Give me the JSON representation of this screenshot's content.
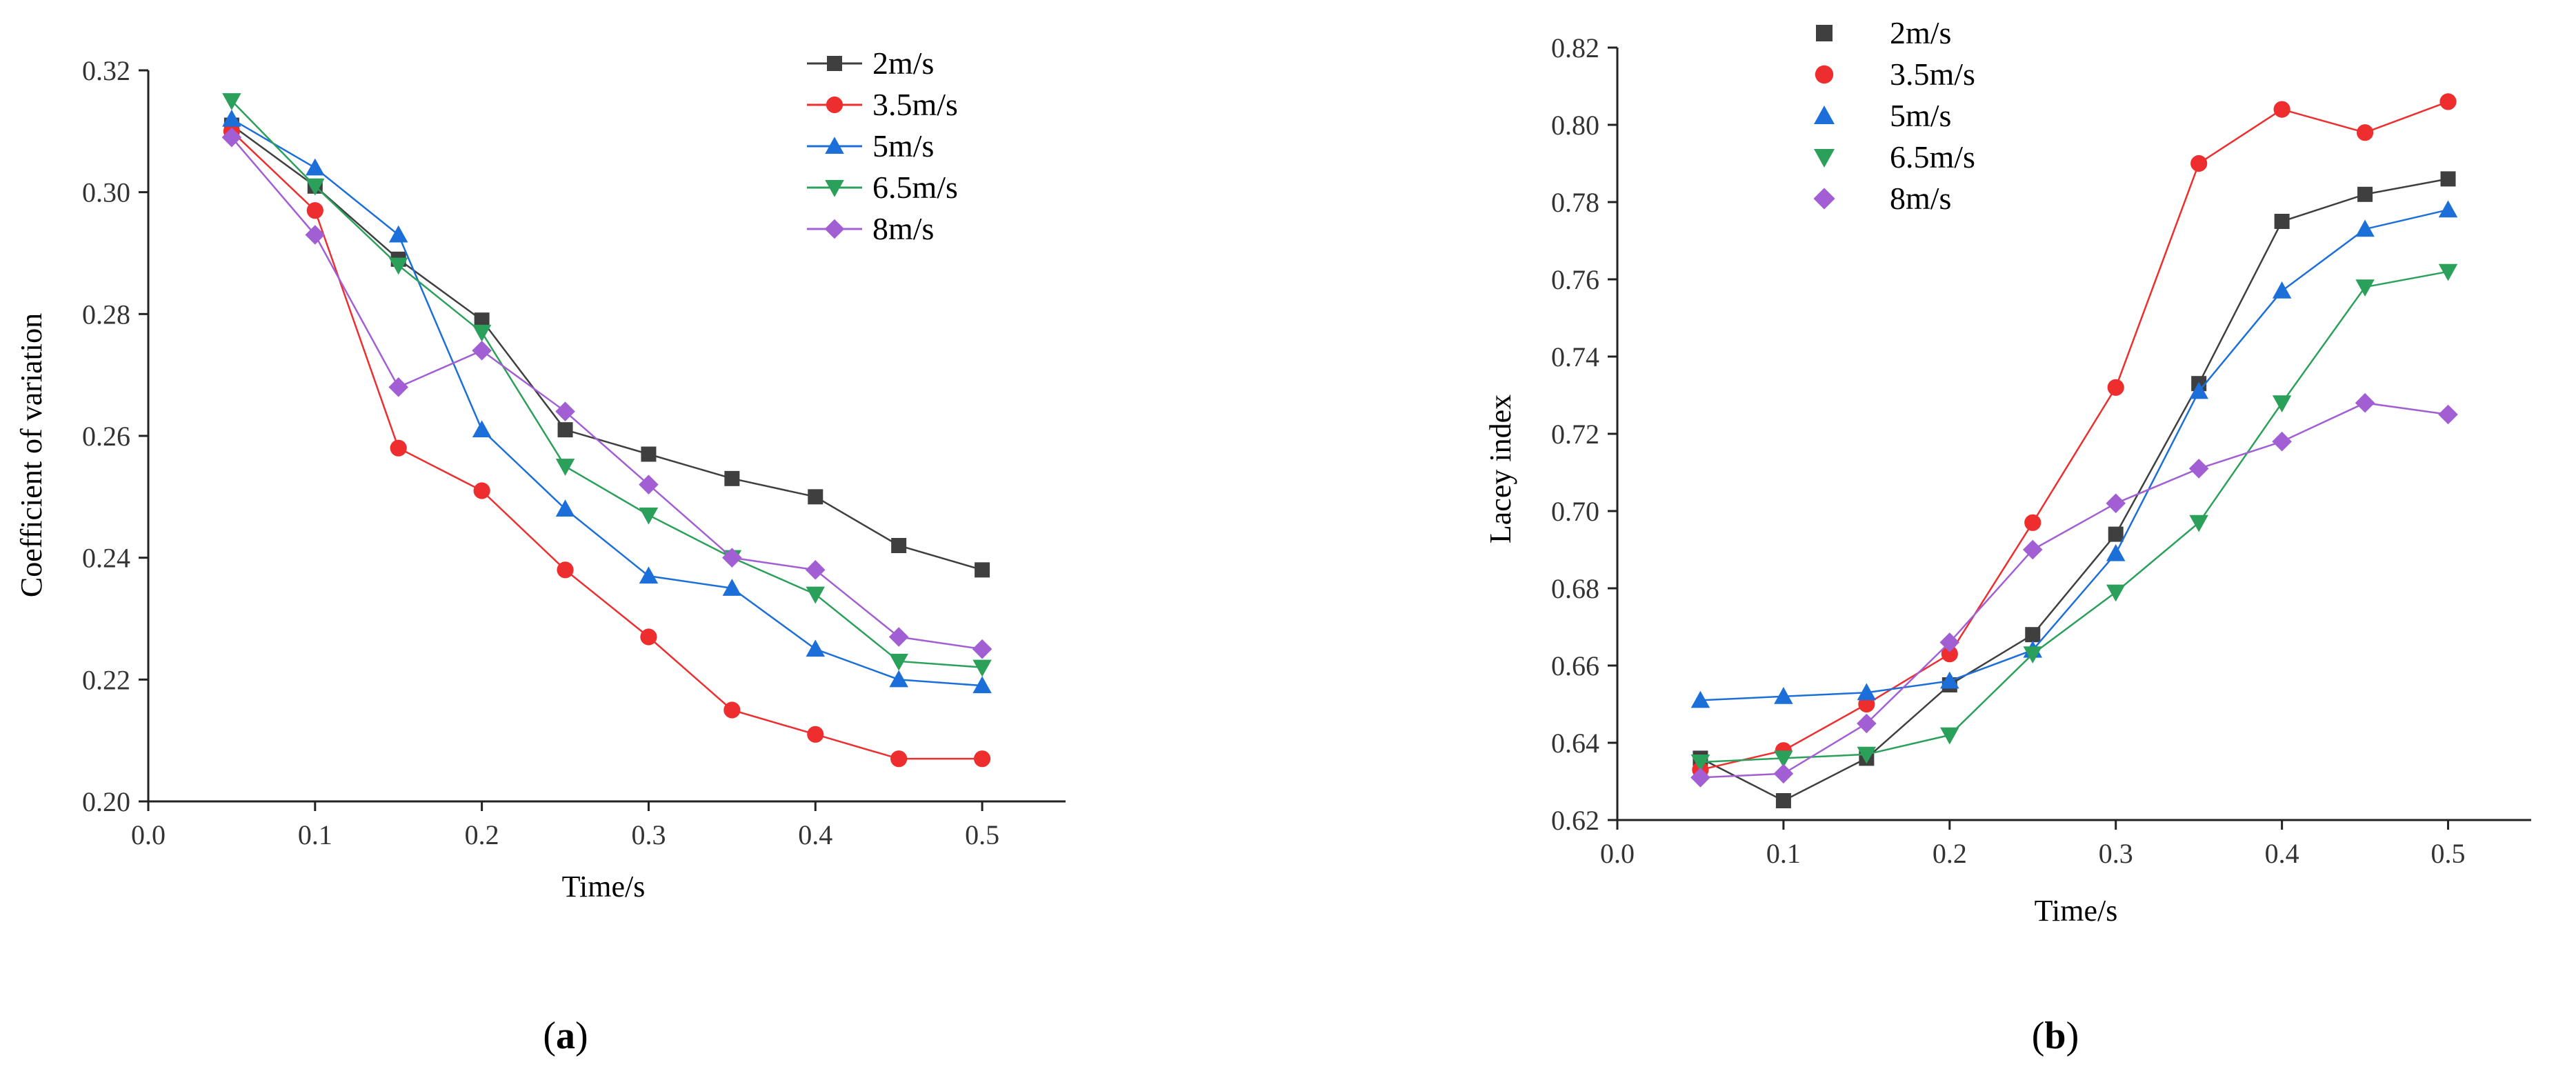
{
  "chart_data": [
    {
      "type": "line",
      "panel_label": "(a)",
      "panel_letter": "a",
      "title": "",
      "xlabel": "Time/s",
      "ylabel": "Coefficient of variation",
      "xlim": [
        0.0,
        0.55
      ],
      "ylim": [
        0.2,
        0.32
      ],
      "xticks": [
        0.0,
        0.1,
        0.2,
        0.3,
        0.4,
        0.5
      ],
      "xtick_labels": [
        "0.0",
        "0.1",
        "0.2",
        "0.3",
        "0.4",
        "0.5"
      ],
      "yticks": [
        0.2,
        0.22,
        0.24,
        0.26,
        0.28,
        0.3,
        0.32
      ],
      "ytick_labels": [
        "0.20",
        "0.22",
        "0.24",
        "0.26",
        "0.28",
        "0.30",
        "0.32"
      ],
      "legend_position": "top-right",
      "legend_style": "line-and-marker",
      "x": [
        0.05,
        0.1,
        0.15,
        0.2,
        0.25,
        0.3,
        0.35,
        0.4,
        0.45,
        0.5
      ],
      "series": [
        {
          "name": "2m/s",
          "color": "#3f3f3f",
          "marker": "square",
          "values": [
            0.311,
            0.301,
            0.289,
            0.279,
            0.261,
            0.257,
            0.253,
            0.25,
            0.242,
            0.238
          ]
        },
        {
          "name": "3.5m/s",
          "color": "#ee2e2e",
          "marker": "circle",
          "values": [
            0.31,
            0.297,
            0.258,
            0.251,
            0.238,
            0.227,
            0.215,
            0.211,
            0.207,
            0.207
          ]
        },
        {
          "name": "5m/s",
          "color": "#1c6fd8",
          "marker": "triangle-up",
          "values": [
            0.312,
            0.304,
            0.293,
            0.261,
            0.248,
            0.237,
            0.235,
            0.225,
            0.22,
            0.219
          ]
        },
        {
          "name": "6.5m/s",
          "color": "#2aa05a",
          "marker": "triangle-down",
          "values": [
            0.315,
            0.301,
            0.288,
            0.277,
            0.255,
            0.247,
            0.24,
            0.234,
            0.223,
            0.222
          ]
        },
        {
          "name": "8m/s",
          "color": "#a25fd4",
          "marker": "diamond",
          "values": [
            0.309,
            0.293,
            0.268,
            0.274,
            0.264,
            0.252,
            0.24,
            0.238,
            0.227,
            0.225
          ]
        }
      ]
    },
    {
      "type": "line",
      "panel_label": "(b)",
      "panel_letter": "b",
      "title": "",
      "xlabel": "Time/s",
      "ylabel": "Lacey index",
      "xlim": [
        0.0,
        0.55
      ],
      "ylim": [
        0.62,
        0.82
      ],
      "xticks": [
        0.0,
        0.1,
        0.2,
        0.3,
        0.4,
        0.5
      ],
      "xtick_labels": [
        "0.0",
        "0.1",
        "0.2",
        "0.3",
        "0.4",
        "0.5"
      ],
      "yticks": [
        0.62,
        0.64,
        0.66,
        0.68,
        0.7,
        0.72,
        0.74,
        0.76,
        0.78,
        0.8,
        0.82
      ],
      "ytick_labels": [
        "0.62",
        "0.64",
        "0.66",
        "0.68",
        "0.70",
        "0.72",
        "0.74",
        "0.76",
        "0.78",
        "0.80",
        "0.82"
      ],
      "legend_position": "top-center",
      "legend_style": "marker-only",
      "x": [
        0.05,
        0.1,
        0.15,
        0.2,
        0.25,
        0.3,
        0.35,
        0.4,
        0.45,
        0.5
      ],
      "series": [
        {
          "name": "2m/s",
          "color": "#3f3f3f",
          "marker": "square",
          "values": [
            0.636,
            0.625,
            0.636,
            0.655,
            0.668,
            0.694,
            0.733,
            0.775,
            0.782,
            0.786
          ]
        },
        {
          "name": "3.5m/s",
          "color": "#ee2e2e",
          "marker": "circle",
          "values": [
            0.633,
            0.638,
            0.65,
            0.663,
            0.697,
            0.732,
            0.79,
            0.804,
            0.798,
            0.806
          ]
        },
        {
          "name": "5m/s",
          "color": "#1c6fd8",
          "marker": "triangle-up",
          "values": [
            0.651,
            0.652,
            0.653,
            0.656,
            0.664,
            0.689,
            0.731,
            0.757,
            0.773,
            0.778
          ]
        },
        {
          "name": "6.5m/s",
          "color": "#2aa05a",
          "marker": "triangle-down",
          "values": [
            0.635,
            0.636,
            0.637,
            0.642,
            0.663,
            0.679,
            0.697,
            0.728,
            0.758,
            0.762
          ]
        },
        {
          "name": "8m/s",
          "color": "#a25fd4",
          "marker": "diamond",
          "values": [
            0.631,
            0.632,
            0.645,
            0.666,
            0.69,
            0.702,
            0.711,
            0.718,
            0.728,
            0.725
          ]
        }
      ]
    }
  ]
}
